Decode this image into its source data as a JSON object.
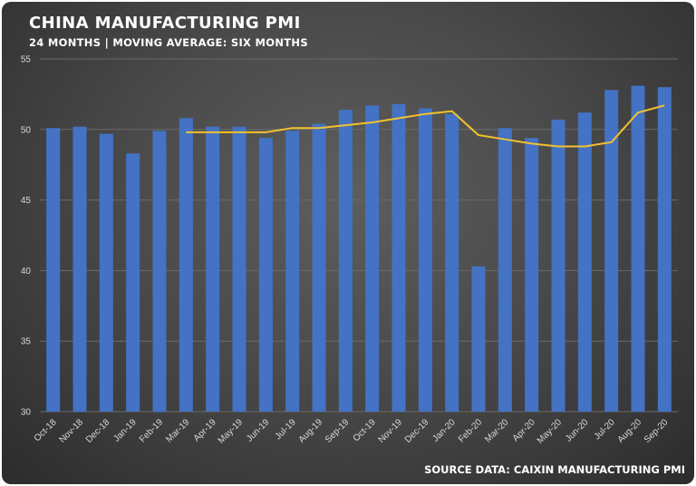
{
  "title": "CHINA MANUFACTURING PMI",
  "subtitle": "24 MONTHS | MOVING AVERAGE: SIX MONTHS",
  "source": "SOURCE DATA: CAIXIN MANUFACTURING PMI",
  "colors": {
    "bar": "#4472c4",
    "line": "#f2c12e",
    "grid": "#6a6a6a"
  },
  "chart_data": {
    "type": "bar",
    "title": "CHINA MANUFACTURING PMI",
    "subtitle": "24 MONTHS | MOVING AVERAGE: SIX MONTHS",
    "categories": [
      "Oct-18",
      "Nov-18",
      "Dec-18",
      "Jan-19",
      "Feb-19",
      "Mar-19",
      "Apr-19",
      "May-19",
      "Jun-19",
      "Jul-19",
      "Aug-19",
      "Sep-19",
      "Oct-19",
      "Nov-19",
      "Dec-19",
      "Jan-20",
      "Feb-20",
      "Mar-20",
      "Apr-20",
      "May-20",
      "Jun-20",
      "Jul-20",
      "Aug-20",
      "Sep-20"
    ],
    "series": [
      {
        "type": "bar",
        "values": [
          50.1,
          50.2,
          49.7,
          48.3,
          49.9,
          50.8,
          50.2,
          50.2,
          49.4,
          49.9,
          50.4,
          51.4,
          51.7,
          51.8,
          51.5,
          51.1,
          40.3,
          50.1,
          49.4,
          50.7,
          51.2,
          52.8,
          53.1,
          53.0
        ]
      },
      {
        "type": "line",
        "values": [
          null,
          null,
          null,
          null,
          null,
          49.8,
          49.8,
          49.8,
          49.8,
          50.1,
          50.1,
          50.3,
          50.5,
          50.8,
          51.1,
          51.3,
          49.6,
          49.3,
          49.0,
          48.8,
          48.8,
          49.1,
          51.2,
          51.7
        ]
      }
    ],
    "ylim": [
      30,
      55
    ],
    "yticks": [
      30,
      35,
      40,
      45,
      50,
      55
    ],
    "grid": true,
    "legend": "none"
  }
}
